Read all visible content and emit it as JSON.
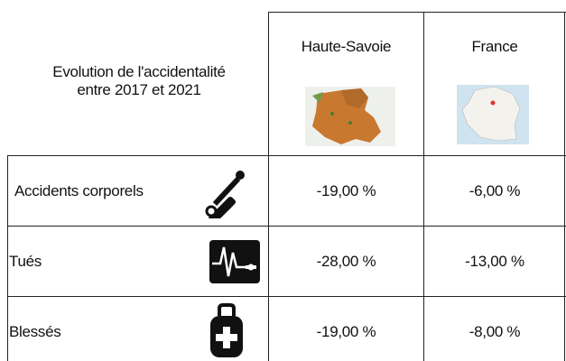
{
  "table": {
    "caption": "Evolution de l'accidentalité entre 2017 et 2021",
    "columns": [
      "Haute-Savoie",
      "France"
    ],
    "rows": [
      {
        "label": "Accidents corporels",
        "values": [
          "-19,00 %",
          "-6,00 %"
        ]
      },
      {
        "label": "Tués",
        "values": [
          "-28,00 %",
          "-13,00 %"
        ]
      },
      {
        "label": "Blessés",
        "values": [
          "-19,00 %",
          "-8,00 %"
        ]
      }
    ]
  }
}
